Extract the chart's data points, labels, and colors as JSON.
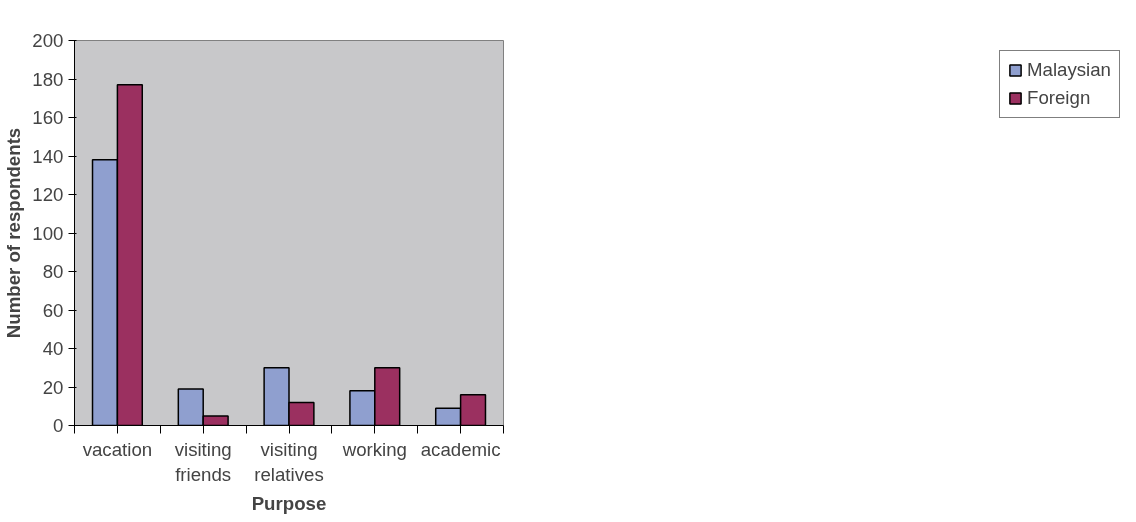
{
  "chart_data": {
    "type": "bar",
    "xlabel": "Purpose",
    "ylabel": "Number of respondents",
    "categories": [
      "vacation",
      "visiting friends",
      "visiting relatives",
      "working",
      "academic"
    ],
    "series": [
      {
        "name": "Malaysian",
        "color": "#8f9fcf",
        "values": [
          138,
          19,
          30,
          18,
          9
        ]
      },
      {
        "name": "Foreign",
        "color": "#9b3060",
        "values": [
          177,
          5,
          12,
          30,
          16
        ]
      }
    ],
    "ylim": [
      0,
      200
    ],
    "yticks": [
      0,
      20,
      40,
      60,
      80,
      100,
      120,
      140,
      160,
      180,
      200
    ],
    "grid": false,
    "legend": "right"
  }
}
